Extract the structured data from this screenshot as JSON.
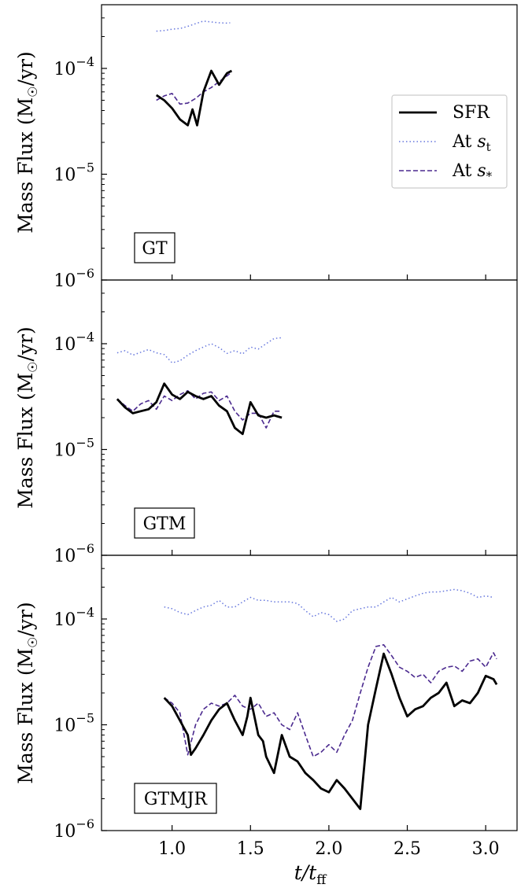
{
  "chart_data": {
    "type": "line",
    "shared_x": {
      "label": "t/t_ff",
      "label_main": "t/t",
      "label_sub": "ff",
      "lim": [
        0.55,
        3.2
      ],
      "ticks": [
        1.0,
        1.5,
        2.0,
        2.5,
        3.0
      ],
      "tick_labels": [
        "1.0",
        "1.5",
        "2.0",
        "2.5",
        "3.0"
      ]
    },
    "shared_y": {
      "label": "Mass Flux (M☉/yr)",
      "label_left": "Mass Flux (M",
      "label_sun": "☉",
      "label_right": "/yr)",
      "scale": "log",
      "lim": [
        1e-06,
        0.0004
      ],
      "ticks": [
        1e-06,
        1e-05,
        0.0001
      ],
      "tick_base": "10",
      "tick_exps": [
        "−6",
        "−5",
        "−4"
      ]
    },
    "legend": {
      "placement": "right, upper-middle of top panel",
      "entries": [
        {
          "label": "SFR",
          "style": "solid",
          "color": "#000000"
        },
        {
          "label": "At s_t",
          "label_main": "At ",
          "label_var": "s",
          "label_sub": "t",
          "style": "dotted",
          "color": "#6677dd"
        },
        {
          "label": "At s_*",
          "label_main": "At ",
          "label_var": "s",
          "label_sub": "*",
          "style": "dashed",
          "color": "#4b2a8f"
        }
      ]
    },
    "panels": [
      {
        "name": "GT",
        "series": [
          {
            "name": "SFR",
            "x": [
              0.9,
              0.95,
              1.0,
              1.05,
              1.1,
              1.13,
              1.16,
              1.2,
              1.25,
              1.3,
              1.35,
              1.38
            ],
            "y": [
              5.6e-05,
              5e-05,
              4.2e-05,
              3.3e-05,
              2.9e-05,
              4.1e-05,
              2.9e-05,
              6e-05,
              9.5e-05,
              7e-05,
              9e-05,
              9.5e-05
            ]
          },
          {
            "name": "At s_t",
            "x": [
              0.9,
              0.95,
              1.0,
              1.05,
              1.1,
              1.15,
              1.2,
              1.25,
              1.3,
              1.35,
              1.37
            ],
            "y": [
              0.000225,
              0.000228,
              0.000235,
              0.000238,
              0.00025,
              0.000265,
              0.00028,
              0.000275,
              0.00027,
              0.000268,
              0.00027
            ]
          },
          {
            "name": "At s_*",
            "x": [
              0.9,
              0.95,
              1.0,
              1.05,
              1.1,
              1.15,
              1.2,
              1.25,
              1.3,
              1.35,
              1.38
            ],
            "y": [
              5e-05,
              5.5e-05,
              5.8e-05,
              4.6e-05,
              4.7e-05,
              5.2e-05,
              6e-05,
              6.6e-05,
              7.5e-05,
              8.5e-05,
              9.2e-05
            ]
          }
        ]
      },
      {
        "name": "GTM",
        "series": [
          {
            "name": "SFR",
            "x": [
              0.65,
              0.7,
              0.75,
              0.8,
              0.85,
              0.9,
              0.95,
              1.0,
              1.05,
              1.1,
              1.15,
              1.2,
              1.25,
              1.3,
              1.35,
              1.4,
              1.45,
              1.5,
              1.55,
              1.6,
              1.65,
              1.7
            ],
            "y": [
              3e-05,
              2.5e-05,
              2.2e-05,
              2.3e-05,
              2.4e-05,
              2.8e-05,
              4.2e-05,
              3.3e-05,
              3e-05,
              3.5e-05,
              3.2e-05,
              3e-05,
              3.2e-05,
              2.6e-05,
              2.3e-05,
              1.6e-05,
              1.4e-05,
              2.8e-05,
              2.1e-05,
              2e-05,
              2.1e-05,
              2e-05
            ]
          },
          {
            "name": "At s_t",
            "x": [
              0.65,
              0.7,
              0.75,
              0.8,
              0.85,
              0.9,
              0.95,
              1.0,
              1.05,
              1.1,
              1.15,
              1.2,
              1.25,
              1.3,
              1.35,
              1.4,
              1.45,
              1.5,
              1.55,
              1.6,
              1.65,
              1.7
            ],
            "y": [
              8.2e-05,
              8.6e-05,
              7.8e-05,
              8.3e-05,
              8.8e-05,
              8.2e-05,
              7.9e-05,
              6.6e-05,
              6.9e-05,
              7.8e-05,
              8.6e-05,
              9.3e-05,
              0.0001,
              9.2e-05,
              8.1e-05,
              8.6e-05,
              8e-05,
              9.3e-05,
              8.9e-05,
              0.0001,
              0.000112,
              0.000114
            ]
          },
          {
            "name": "At s_*",
            "x": [
              0.65,
              0.7,
              0.75,
              0.8,
              0.85,
              0.9,
              0.95,
              1.0,
              1.05,
              1.1,
              1.15,
              1.2,
              1.25,
              1.3,
              1.35,
              1.4,
              1.45,
              1.5,
              1.55,
              1.6,
              1.65,
              1.7
            ],
            "y": [
              3e-05,
              2.6e-05,
              2.3e-05,
              2.7e-05,
              2.9e-05,
              2.4e-05,
              3.2e-05,
              2.9e-05,
              3.3e-05,
              3.6e-05,
              3e-05,
              3.4e-05,
              3.5e-05,
              2.9e-05,
              3.2e-05,
              2.3e-05,
              1.9e-05,
              2.2e-05,
              2.2e-05,
              1.6e-05,
              2.3e-05,
              2.3e-05
            ]
          }
        ]
      },
      {
        "name": "GTMJR",
        "series": [
          {
            "name": "SFR",
            "x": [
              0.95,
              1.0,
              1.05,
              1.1,
              1.12,
              1.15,
              1.2,
              1.25,
              1.3,
              1.35,
              1.4,
              1.45,
              1.48,
              1.5,
              1.55,
              1.58,
              1.6,
              1.65,
              1.7,
              1.75,
              1.8,
              1.85,
              1.9,
              1.95,
              2.0,
              2.05,
              2.1,
              2.15,
              2.2,
              2.25,
              2.3,
              2.35,
              2.4,
              2.45,
              2.5,
              2.55,
              2.6,
              2.65,
              2.7,
              2.75,
              2.8,
              2.85,
              2.9,
              2.95,
              3.0,
              3.05,
              3.07
            ],
            "y": [
              1.8e-05,
              1.5e-05,
              1.1e-05,
              8e-06,
              5.2e-06,
              6e-06,
              8e-06,
              1.1e-05,
              1.4e-05,
              1.6e-05,
              1.1e-05,
              8e-06,
              1.2e-05,
              1.8e-05,
              8e-06,
              7e-06,
              5e-06,
              3.5e-06,
              8e-06,
              5e-06,
              4.5e-06,
              3.5e-06,
              3e-06,
              2.5e-06,
              2.3e-06,
              3e-06,
              2.5e-06,
              2e-06,
              1.6e-06,
              1e-05,
              2.2e-05,
              4.7e-05,
              3e-05,
              1.8e-05,
              1.2e-05,
              1.4e-05,
              1.5e-05,
              1.8e-05,
              2e-05,
              2.5e-05,
              1.5e-05,
              1.7e-05,
              1.6e-05,
              2e-05,
              2.9e-05,
              2.7e-05,
              2.4e-05
            ]
          },
          {
            "name": "At s_t",
            "x": [
              0.95,
              1.0,
              1.05,
              1.1,
              1.15,
              1.2,
              1.25,
              1.3,
              1.35,
              1.4,
              1.45,
              1.5,
              1.55,
              1.6,
              1.65,
              1.7,
              1.75,
              1.8,
              1.85,
              1.9,
              1.95,
              2.0,
              2.05,
              2.1,
              2.15,
              2.2,
              2.25,
              2.3,
              2.35,
              2.4,
              2.45,
              2.5,
              2.55,
              2.6,
              2.65,
              2.7,
              2.75,
              2.8,
              2.85,
              2.9,
              2.95,
              3.0,
              3.05
            ],
            "y": [
              0.00013,
              0.000125,
              0.000115,
              0.00011,
              0.00012,
              0.00013,
              0.000135,
              0.00015,
              0.00013,
              0.00013,
              0.000145,
              0.00016,
              0.00015,
              0.00015,
              0.000145,
              0.000145,
              0.000145,
              0.00014,
              0.00012,
              0.000105,
              0.000115,
              0.00011,
              9.5e-05,
              0.0001,
              0.00012,
              0.000125,
              0.00013,
              0.00013,
              0.000145,
              0.00016,
              0.000145,
              0.000155,
              0.000165,
              0.000175,
              0.00018,
              0.00018,
              0.000185,
              0.00019,
              0.000185,
              0.000175,
              0.00016,
              0.000165,
              0.00016
            ]
          },
          {
            "name": "At s_*",
            "x": [
              0.95,
              1.0,
              1.05,
              1.1,
              1.15,
              1.2,
              1.25,
              1.3,
              1.35,
              1.4,
              1.45,
              1.5,
              1.55,
              1.6,
              1.65,
              1.7,
              1.75,
              1.8,
              1.85,
              1.9,
              1.95,
              2.0,
              2.05,
              2.1,
              2.15,
              2.2,
              2.25,
              2.3,
              2.35,
              2.4,
              2.45,
              2.5,
              2.55,
              2.6,
              2.65,
              2.7,
              2.75,
              2.8,
              2.85,
              2.9,
              2.95,
              3.0,
              3.05,
              3.07
            ],
            "y": [
              1.8e-05,
              1.6e-05,
              1.3e-05,
              5.2e-06,
              1e-05,
              1.4e-05,
              1.6e-05,
              1.5e-05,
              1.6e-05,
              1.9e-05,
              1.5e-05,
              1.4e-05,
              1.6e-05,
              1.2e-05,
              1.3e-05,
              1e-05,
              9e-06,
              1.3e-05,
              8e-06,
              5e-06,
              5.5e-06,
              6.5e-06,
              5.5e-06,
              8e-06,
              1.1e-05,
              2e-05,
              3.5e-05,
              5.5e-05,
              5.7e-05,
              4.5e-05,
              3.5e-05,
              3.2e-05,
              2.8e-05,
              3e-05,
              2.5e-05,
              3.2e-05,
              3.5e-05,
              3.6e-05,
              3.2e-05,
              4e-05,
              4.2e-05,
              3.5e-05,
              4.8e-05,
              4.2e-05
            ]
          }
        ]
      }
    ]
  }
}
